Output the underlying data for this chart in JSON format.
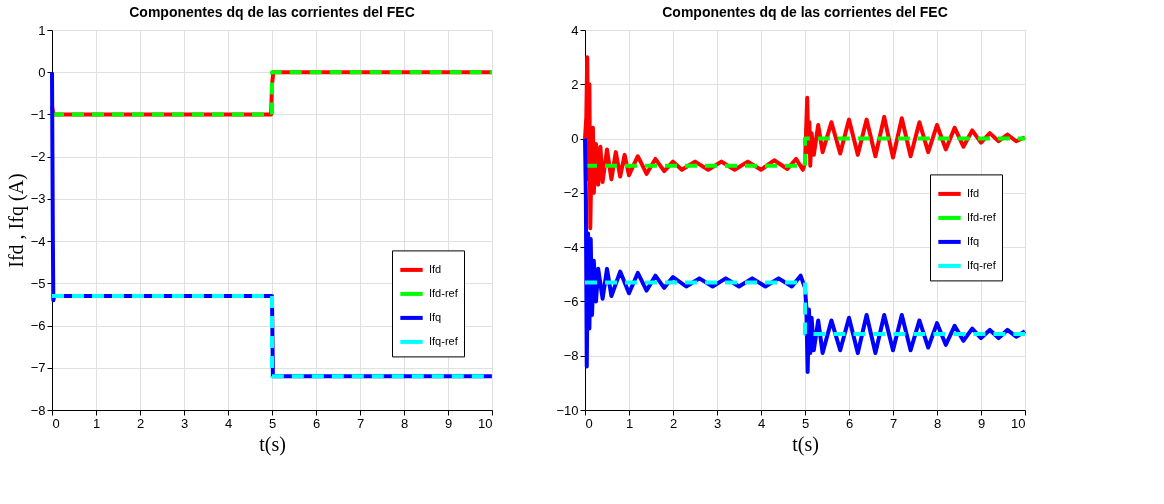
{
  "chart_data": [
    {
      "type": "line",
      "title": "Componentes dq de las corrientes del FEC",
      "xlabel": "t(s)",
      "ylabel": "Ifd , Ifq (A)",
      "xlim": [
        0,
        10
      ],
      "ylim": [
        -8,
        1
      ],
      "xticks": [
        0,
        1,
        2,
        3,
        4,
        5,
        6,
        7,
        8,
        9,
        10
      ],
      "yticks": [
        -8,
        -7,
        -6,
        -5,
        -4,
        -3,
        -2,
        -1,
        0,
        1
      ],
      "grid": true,
      "legend": "bottom right",
      "series": [
        {
          "name": "Ifd",
          "color": "#ff0000",
          "line_style": "solid",
          "x": [
            0,
            0.03,
            4.98,
            5.0,
            5.03,
            10
          ],
          "values": [
            -0.8,
            -1,
            -1,
            -0.3,
            0,
            0
          ]
        },
        {
          "name": "Ifd-ref",
          "color": "#00ff00",
          "line_style": "dashed",
          "x": [
            0,
            5,
            5,
            10
          ],
          "values": [
            -1,
            -1,
            0,
            0
          ]
        },
        {
          "name": "Ifq",
          "color": "#0000ff",
          "line_style": "solid",
          "x": [
            0,
            0.02,
            0.03,
            0.05,
            5,
            5.02,
            10
          ],
          "values": [
            0,
            -4,
            -5.4,
            -5.3,
            -5.3,
            -7.2,
            -7.2
          ]
        },
        {
          "name": "Ifq-ref",
          "color": "#00ffff",
          "line_style": "dashed",
          "x": [
            0,
            5,
            5,
            10
          ],
          "values": [
            -5.3,
            -5.3,
            -7.2,
            -7.2
          ]
        }
      ]
    },
    {
      "type": "line",
      "title": "Componentes dq de las corrientes del FEC",
      "xlabel": "t(s)",
      "xlim": [
        0,
        10
      ],
      "ylim": [
        -10,
        4
      ],
      "xticks": [
        0,
        1,
        2,
        3,
        4,
        5,
        6,
        7,
        8,
        9,
        10
      ],
      "yticks": [
        -10,
        -8,
        -6,
        -4,
        -2,
        0,
        2,
        4
      ],
      "grid": true,
      "legend": "right",
      "series": [
        {
          "name": "Ifd",
          "color": "#ff0000",
          "line_style": "solid",
          "x": [
            0,
            0.03,
            0.05,
            0.08,
            0.1,
            0.12,
            0.15,
            0.18,
            0.2,
            0.25,
            0.3,
            0.35,
            0.4,
            0.5,
            0.6,
            0.7,
            0.8,
            0.9,
            1.0,
            1.2,
            1.4,
            1.6,
            1.8,
            2.0,
            2.2,
            2.5,
            2.8,
            3.1,
            3.4,
            3.7,
            4.0,
            4.3,
            4.6,
            4.8,
            4.95,
            5.0,
            5.05,
            5.08,
            5.1,
            5.12,
            5.15,
            5.2,
            5.3,
            5.4,
            5.6,
            5.8,
            6.0,
            6.2,
            6.4,
            6.6,
            6.8,
            7.0,
            7.2,
            7.4,
            7.6,
            7.8,
            8.0,
            8.2,
            8.4,
            8.6,
            8.8,
            9.0,
            9.2,
            9.4,
            9.6,
            9.8,
            10.0
          ],
          "values": [
            0,
            0.8,
            3.0,
            -1.5,
            2.0,
            -3.3,
            -0.5,
            0.4,
            -2.0,
            -0.2,
            -1.7,
            -0.3,
            -1.6,
            -0.4,
            -1.5,
            -0.5,
            -1.4,
            -0.6,
            -1.35,
            -0.65,
            -1.3,
            -0.75,
            -1.2,
            -0.85,
            -1.15,
            -0.85,
            -1.15,
            -0.85,
            -1.15,
            -0.85,
            -1.15,
            -0.8,
            -1.12,
            -0.75,
            -1.15,
            -0.9,
            1.5,
            -0.5,
            0.6,
            -1.0,
            0.2,
            -0.6,
            0.5,
            -0.5,
            0.6,
            -0.55,
            0.7,
            -0.6,
            0.7,
            -0.65,
            0.8,
            -0.7,
            0.75,
            -0.65,
            0.6,
            -0.5,
            0.5,
            -0.4,
            0.4,
            -0.3,
            0.3,
            -0.15,
            0.2,
            -0.1,
            0.15,
            -0.1,
            0.05
          ]
        },
        {
          "name": "Ifd-ref",
          "color": "#00ff00",
          "line_style": "dashed",
          "x": [
            0,
            5,
            5,
            10
          ],
          "values": [
            -1,
            -1,
            0,
            0
          ]
        },
        {
          "name": "Ifq",
          "color": "#0000ff",
          "line_style": "solid",
          "x": [
            0,
            0.02,
            0.04,
            0.07,
            0.1,
            0.13,
            0.16,
            0.2,
            0.25,
            0.3,
            0.4,
            0.5,
            0.6,
            0.8,
            1.0,
            1.2,
            1.4,
            1.6,
            1.8,
            2.0,
            2.3,
            2.6,
            2.9,
            3.2,
            3.5,
            3.8,
            4.1,
            4.4,
            4.7,
            4.9,
            5.0,
            5.03,
            5.06,
            5.09,
            5.12,
            5.15,
            5.2,
            5.3,
            5.4,
            5.6,
            5.8,
            6.0,
            6.2,
            6.4,
            6.6,
            6.8,
            7.0,
            7.2,
            7.4,
            7.6,
            7.8,
            8.0,
            8.2,
            8.4,
            8.6,
            8.8,
            9.0,
            9.2,
            9.4,
            9.6,
            9.8,
            10.0
          ],
          "values": [
            0,
            -2.2,
            -8.4,
            -3.5,
            -7.0,
            -3.7,
            -6.5,
            -4.5,
            -6.0,
            -4.8,
            -5.9,
            -4.8,
            -5.8,
            -4.9,
            -5.7,
            -4.95,
            -5.6,
            -5.05,
            -5.5,
            -5.1,
            -5.45,
            -5.15,
            -5.45,
            -5.15,
            -5.45,
            -5.15,
            -5.45,
            -5.15,
            -5.45,
            -5.05,
            -5.5,
            -6.2,
            -8.6,
            -6.3,
            -7.9,
            -6.6,
            -7.8,
            -6.7,
            -7.9,
            -6.7,
            -7.8,
            -6.6,
            -7.9,
            -6.5,
            -7.9,
            -6.5,
            -7.8,
            -6.5,
            -7.8,
            -6.7,
            -7.7,
            -6.8,
            -7.6,
            -6.9,
            -7.45,
            -7.0,
            -7.35,
            -7.05,
            -7.35,
            -7.05,
            -7.3,
            -7.1
          ]
        },
        {
          "name": "Ifq-ref",
          "color": "#00ffff",
          "line_style": "dashed",
          "x": [
            0,
            5,
            5,
            10
          ],
          "values": [
            -5.3,
            -5.3,
            -7.2,
            -7.2
          ]
        }
      ]
    }
  ]
}
